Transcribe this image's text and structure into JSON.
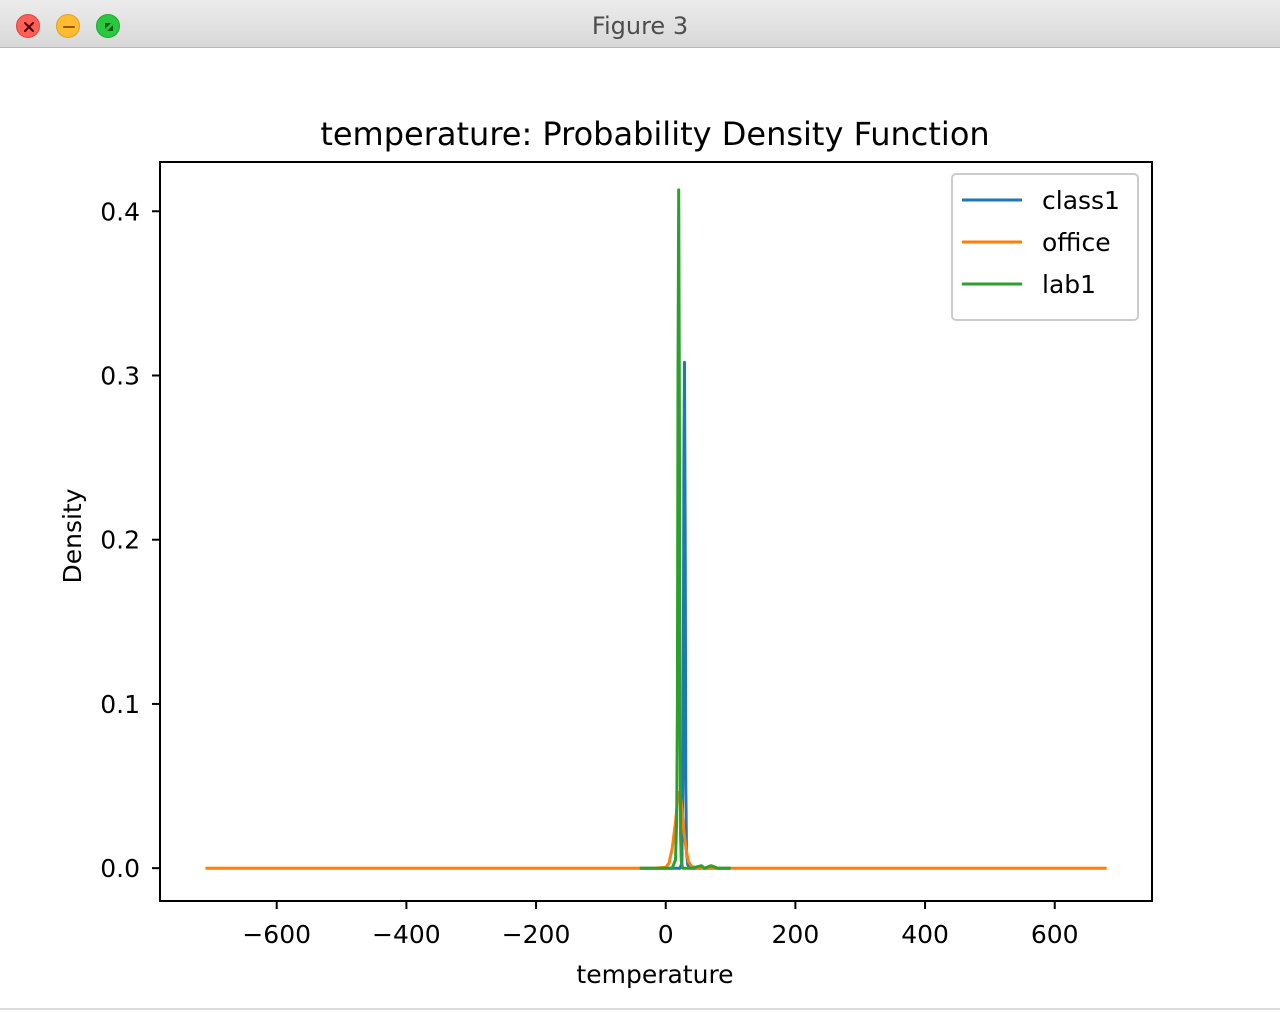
{
  "window": {
    "title": "Figure 3",
    "buttons": {
      "close": "close-icon",
      "minimize": "minimize-icon",
      "maximize": "maximize-icon"
    }
  },
  "chart_data": {
    "type": "line",
    "title": "temperature: Probability Density Function",
    "xlabel": "temperature",
    "ylabel": "Density",
    "xlim": [
      -780,
      750
    ],
    "ylim": [
      -0.02,
      0.43
    ],
    "xticks": [
      -600,
      -400,
      -200,
      0,
      200,
      400,
      600
    ],
    "xtick_labels": [
      "−600",
      "−400",
      "−200",
      "0",
      "200",
      "400",
      "600"
    ],
    "yticks": [
      0.0,
      0.1,
      0.2,
      0.3,
      0.4
    ],
    "ytick_labels": [
      "0.0",
      "0.1",
      "0.2",
      "0.3",
      "0.4"
    ],
    "grid": false,
    "legend_position": "top-right",
    "series": [
      {
        "name": "class1",
        "color": "#1f77b4",
        "x": [
          -40,
          15,
          22,
          25,
          27,
          28,
          29,
          30,
          31,
          32,
          34,
          38,
          50,
          70,
          100
        ],
        "y": [
          0.0,
          0.0,
          0.0,
          0.003,
          0.08,
          0.25,
          0.308,
          0.2,
          0.05,
          0.01,
          0.002,
          0.0,
          0.0,
          0.0,
          0.0
        ]
      },
      {
        "name": "office",
        "color": "#ff7f0e",
        "x": [
          -710,
          -400,
          -200,
          -100,
          -20,
          0,
          5,
          10,
          15,
          18,
          20,
          23,
          25,
          28,
          32,
          35,
          40,
          50,
          100,
          300,
          500,
          680
        ],
        "y": [
          0.0,
          0.0,
          0.0,
          0.0,
          0.0,
          0.0005,
          0.003,
          0.012,
          0.028,
          0.04,
          0.046,
          0.043,
          0.036,
          0.022,
          0.01,
          0.004,
          0.001,
          0.0,
          0.0,
          0.0,
          0.0,
          0.0
        ]
      },
      {
        "name": "lab1",
        "color": "#2ca02c",
        "x": [
          -40,
          0,
          10,
          15,
          17,
          18,
          19,
          20,
          21,
          22,
          23,
          24,
          26,
          30,
          40,
          55,
          60,
          70,
          80,
          100
        ],
        "y": [
          0.0,
          0.0,
          0.0,
          0.005,
          0.03,
          0.1,
          0.3,
          0.413,
          0.3,
          0.12,
          0.02,
          0.004,
          0.0,
          0.0,
          0.0,
          0.0015,
          0.0,
          0.0015,
          0.0,
          0.0
        ]
      }
    ]
  }
}
